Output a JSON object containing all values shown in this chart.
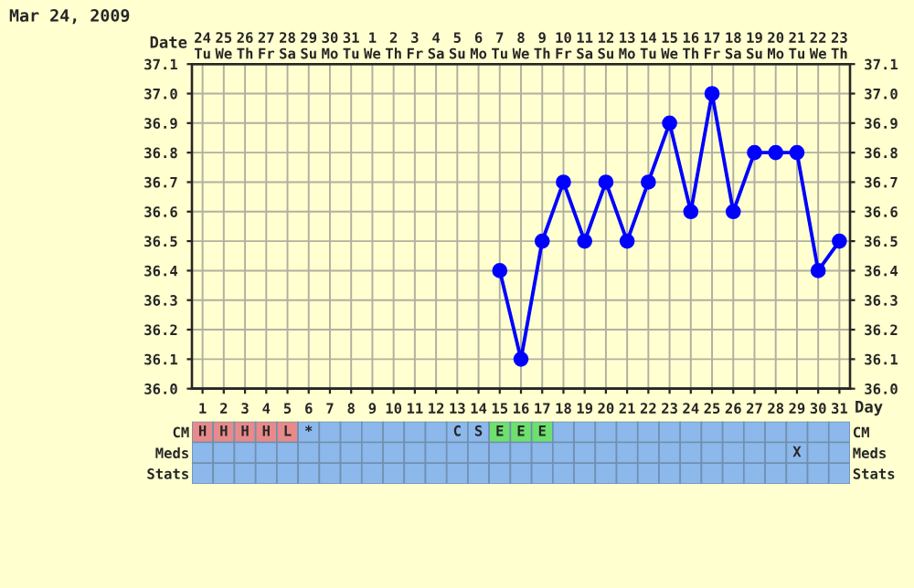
{
  "chart_data": [
    {
      "type": "line",
      "title": "Mar 24, 2009",
      "xlabel": "Day",
      "x2label": "Date",
      "series": [
        {
          "color": "#0000ff",
          "x": [
            15,
            16,
            17,
            18,
            19,
            20,
            21,
            22,
            23,
            24,
            25,
            26,
            27,
            28,
            29,
            30,
            31
          ],
          "values": [
            36.4,
            36.1,
            36.5,
            36.7,
            36.5,
            36.7,
            36.5,
            36.7,
            36.9,
            36.6,
            37.0,
            36.6,
            36.8,
            36.8,
            36.8,
            36.4,
            36.5
          ]
        }
      ],
      "xlim": [
        0.5,
        31.5
      ],
      "xticks": [
        1,
        2,
        3,
        4,
        5,
        6,
        7,
        8,
        9,
        10,
        11,
        12,
        13,
        14,
        15,
        16,
        17,
        18,
        19,
        20,
        21,
        22,
        23,
        24,
        25,
        26,
        27,
        28,
        29,
        30,
        31
      ],
      "x2lim": [
        "2009-03-23T12:00",
        "2009-04-23T12:00"
      ],
      "x2ticks": [
        {
          "value": "2009-03-24",
          "label": "24\nTu"
        },
        {
          "value": "2009-03-25",
          "label": "25\nWe"
        },
        {
          "value": "2009-03-26",
          "label": "26\nTh"
        },
        {
          "value": "2009-03-27",
          "label": "27\nFr"
        },
        {
          "value": "2009-03-28",
          "label": "28\nSa"
        },
        {
          "value": "2009-03-29",
          "label": "29\nSu"
        },
        {
          "value": "2009-03-30",
          "label": "30\nMo"
        },
        {
          "value": "2009-03-31",
          "label": "31\nTu"
        },
        {
          "value": "2009-04-01",
          "label": "1\nWe"
        },
        {
          "value": "2009-04-02",
          "label": "2\nTh"
        },
        {
          "value": "2009-04-03",
          "label": "3\nFr"
        },
        {
          "value": "2009-04-04",
          "label": "4\nSa"
        },
        {
          "value": "2009-04-05",
          "label": "5\nSu"
        },
        {
          "value": "2009-04-06",
          "label": "6\nMo"
        },
        {
          "value": "2009-04-07",
          "label": "7\nTu"
        },
        {
          "value": "2009-04-08",
          "label": "8\nWe"
        },
        {
          "value": "2009-04-09",
          "label": "9\nTh"
        },
        {
          "value": "2009-04-10",
          "label": "10\nFr"
        },
        {
          "value": "2009-04-11",
          "label": "11\nSa"
        },
        {
          "value": "2009-04-12",
          "label": "12\nSu"
        },
        {
          "value": "2009-04-13",
          "label": "13\nMo"
        },
        {
          "value": "2009-04-14",
          "label": "14\nTu"
        },
        {
          "value": "2009-04-15",
          "label": "15\nWe"
        },
        {
          "value": "2009-04-16",
          "label": "16\nTh"
        },
        {
          "value": "2009-04-17",
          "label": "17\nFr"
        },
        {
          "value": "2009-04-18",
          "label": "18\nSa"
        },
        {
          "value": "2009-04-19",
          "label": "19\nSu"
        },
        {
          "value": "2009-04-20",
          "label": "20\nMo"
        },
        {
          "value": "2009-04-21",
          "label": "21\nTu"
        },
        {
          "value": "2009-04-22",
          "label": "22\nWe"
        },
        {
          "value": "2009-04-23",
          "label": "23\nTh"
        }
      ],
      "ylim": [
        36.0,
        37.1
      ],
      "yticks": [
        {
          "value": 36.0,
          "label": "36.0"
        },
        36.1,
        36.2,
        36.3,
        36.4,
        36.5,
        36.6,
        36.7,
        36.8,
        36.9,
        {
          "value": 37.0,
          "label": "37.0"
        },
        37.1
      ],
      "y2lim": [
        36.0,
        37.1
      ],
      "y2ticks": [
        {
          "value": 36.0,
          "label": "36.0"
        },
        36.1,
        36.2,
        36.3,
        36.4,
        36.5,
        36.6,
        36.7,
        36.8,
        36.9,
        {
          "value": 37.0,
          "label": "37.0"
        },
        37.1
      ],
      "grid": true,
      "marker": "circle",
      "line_style": "solid",
      "legend": false
    },
    {
      "type": "other",
      "y_categories": [
        "CM",
        "Meds",
        "Stats"
      ],
      "y2_categories": [
        "CM",
        "Meds",
        "Stats"
      ],
      "cell_labels": [
        [
          "H",
          "H",
          "H",
          "H",
          "L",
          "*",
          null,
          null,
          null,
          null,
          null,
          null,
          "C",
          "S",
          "E",
          "E",
          "E",
          null,
          null,
          null,
          null,
          null,
          null,
          null,
          null,
          null,
          null,
          null,
          null,
          null,
          null
        ],
        [
          null,
          null,
          null,
          null,
          null,
          null,
          null,
          null,
          null,
          null,
          null,
          null,
          null,
          null,
          null,
          null,
          null,
          null,
          null,
          null,
          null,
          null,
          null,
          null,
          null,
          null,
          null,
          null,
          "X",
          null,
          null
        ],
        [
          null,
          null,
          null,
          null,
          null,
          null,
          null,
          null,
          null,
          null,
          null,
          null,
          null,
          null,
          null,
          null,
          null,
          null,
          null,
          null,
          null,
          null,
          null,
          null,
          null,
          null,
          null,
          null,
          null,
          null,
          null
        ]
      ],
      "colors": [
        [
          "#e88a8a",
          "#e88a8a",
          "#e88a8a",
          "#e88a8a",
          "#e88a8a",
          "#8cb8ec",
          "#8cb8ec",
          "#8cb8ec",
          "#8cb8ec",
          "#8cb8ec",
          "#8cb8ec",
          "#8cb8ec",
          "#8cb8ec",
          "#8cb8ec",
          "#6ee06e",
          "#6ee06e",
          "#6ee06e",
          "#8cb8ec",
          "#8cb8ec",
          "#8cb8ec",
          "#8cb8ec",
          "#8cb8ec",
          "#8cb8ec",
          "#8cb8ec",
          "#8cb8ec",
          "#8cb8ec",
          "#8cb8ec",
          "#8cb8ec",
          "#8cb8ec",
          "#8cb8ec",
          "#8cb8ec"
        ],
        [
          "#8cb8ec",
          "#8cb8ec",
          "#8cb8ec",
          "#8cb8ec",
          "#8cb8ec",
          "#8cb8ec",
          "#8cb8ec",
          "#8cb8ec",
          "#8cb8ec",
          "#8cb8ec",
          "#8cb8ec",
          "#8cb8ec",
          "#8cb8ec",
          "#8cb8ec",
          "#8cb8ec",
          "#8cb8ec",
          "#8cb8ec",
          "#8cb8ec",
          "#8cb8ec",
          "#8cb8ec",
          "#8cb8ec",
          "#8cb8ec",
          "#8cb8ec",
          "#8cb8ec",
          "#8cb8ec",
          "#8cb8ec",
          "#8cb8ec",
          "#8cb8ec",
          "#8cb8ec",
          "#8cb8ec",
          "#8cb8ec"
        ],
        [
          "#8cb8ec",
          "#8cb8ec",
          "#8cb8ec",
          "#8cb8ec",
          "#8cb8ec",
          "#8cb8ec",
          "#8cb8ec",
          "#8cb8ec",
          "#8cb8ec",
          "#8cb8ec",
          "#8cb8ec",
          "#8cb8ec",
          "#8cb8ec",
          "#8cb8ec",
          "#8cb8ec",
          "#8cb8ec",
          "#8cb8ec",
          "#8cb8ec",
          "#8cb8ec",
          "#8cb8ec",
          "#8cb8ec",
          "#8cb8ec",
          "#8cb8ec",
          "#8cb8ec",
          "#8cb8ec",
          "#8cb8ec",
          "#8cb8ec",
          "#8cb8ec",
          "#8cb8ec",
          "#8cb8ec",
          "#8cb8ec"
        ]
      ]
    }
  ]
}
